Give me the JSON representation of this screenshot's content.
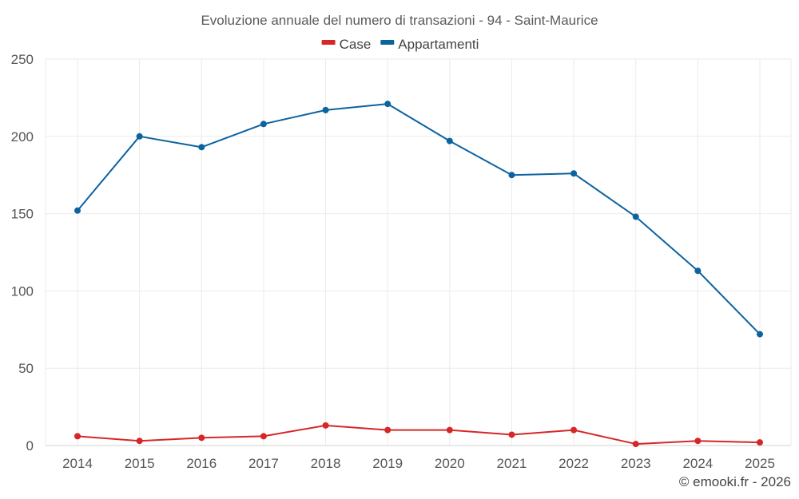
{
  "chart_data": {
    "type": "line",
    "title": "Evoluzione annuale del numero di transazioni - 94 - Saint-Maurice",
    "categories": [
      "2014",
      "2015",
      "2016",
      "2017",
      "2018",
      "2019",
      "2020",
      "2021",
      "2022",
      "2023",
      "2024",
      "2025"
    ],
    "series": [
      {
        "name": "Case",
        "color": "#d62728",
        "values": [
          6,
          3,
          5,
          6,
          13,
          10,
          10,
          7,
          10,
          1,
          3,
          2
        ]
      },
      {
        "name": "Appartamenti",
        "color": "#0b63a0",
        "values": [
          152,
          200,
          193,
          208,
          217,
          221,
          197,
          175,
          176,
          148,
          113,
          72
        ]
      }
    ],
    "ylim": [
      0,
      250
    ],
    "yticks": [
      0,
      50,
      100,
      150,
      200,
      250
    ],
    "xlabel": "",
    "ylabel": "",
    "legend": "top-center",
    "grid": true
  },
  "credit": "© emooki.fr - 2026"
}
